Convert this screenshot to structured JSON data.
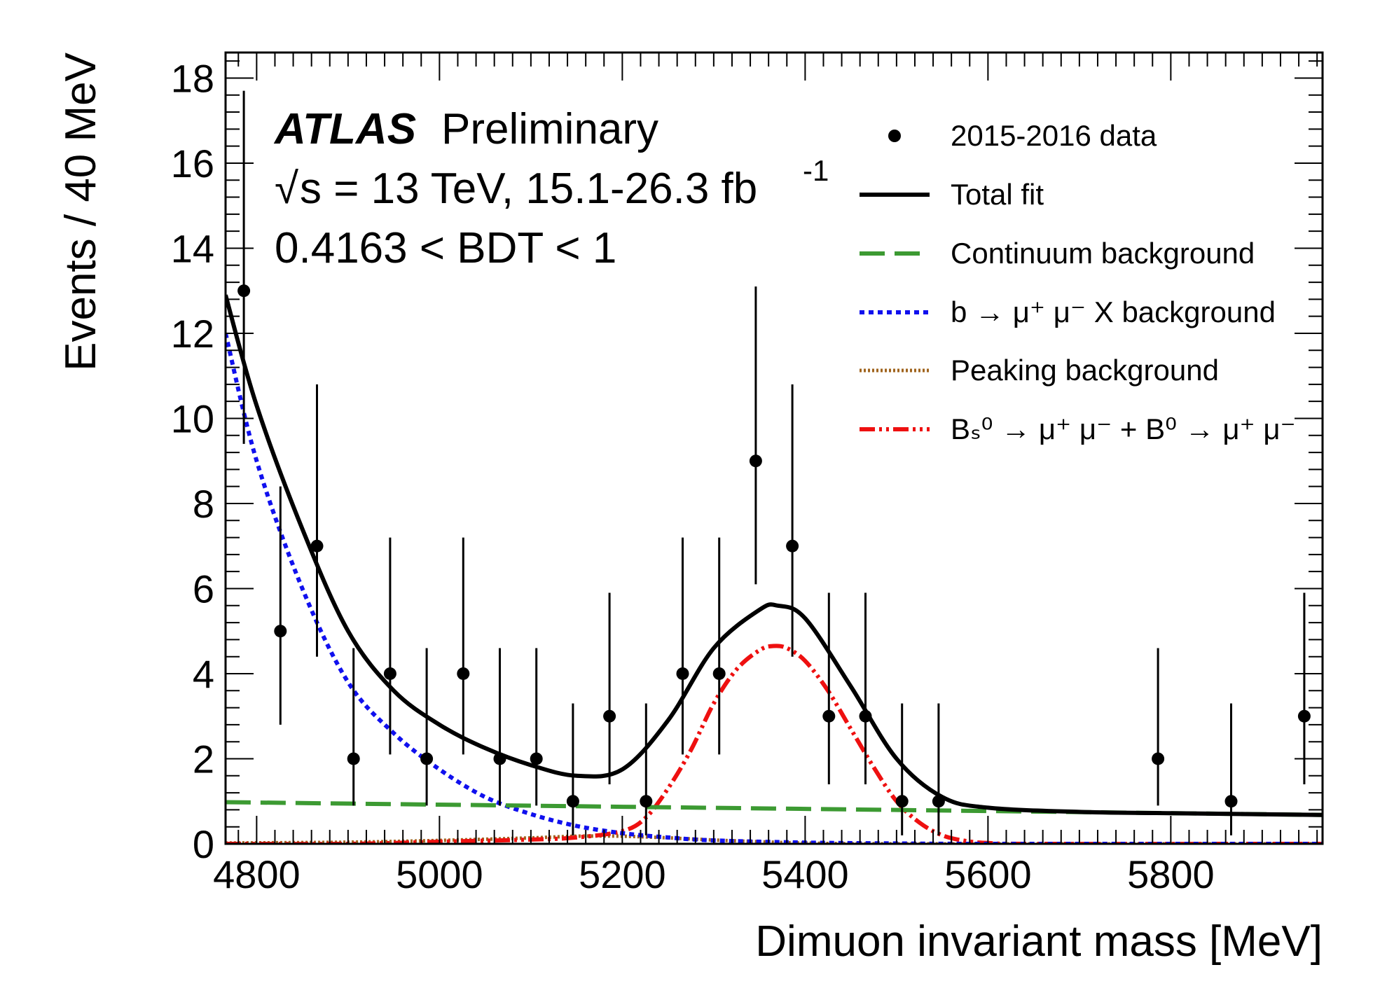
{
  "chart_data": {
    "type": "scatter",
    "xlabel": "Dimuon invariant mass [MeV]",
    "ylabel": "Events / 40 MeV",
    "xlim": [
      4766,
      5966
    ],
    "ylim": [
      0,
      18.6
    ],
    "x_ticks": [
      4800,
      5000,
      5200,
      5400,
      5600,
      5800
    ],
    "x_tick_labels": [
      "4800",
      "5000",
      "5200",
      "5400",
      "5600",
      "5800"
    ],
    "y_ticks": [
      0,
      2,
      4,
      6,
      8,
      10,
      12,
      14,
      16,
      18
    ],
    "y_tick_labels": [
      "0",
      "2",
      "4",
      "6",
      "8",
      "10",
      "12",
      "14",
      "16",
      "18"
    ],
    "grid": false,
    "legend_position": "top-right",
    "annotations": {
      "experiment": "ATLAS",
      "status": "Preliminary",
      "energy_prefix": "s = 13 TeV, 15.1-26.3 fb",
      "energy_sup": "-1",
      "selection": "0.4163 < BDT < 1"
    },
    "legend": {
      "data": "2015-2016 data",
      "total": "Total fit",
      "continuum": "Continuum background",
      "bmumux": "b → μ⁺ μ⁻ X background",
      "peaking": "Peaking background",
      "signal": "Bₛ⁰ → μ⁺ μ⁻ + B⁰ → μ⁺ μ⁻"
    },
    "series": [
      {
        "name": "2015-2016 data",
        "style": "points",
        "color": "#000000",
        "x": [
          4786,
          4826,
          4866,
          4906,
          4946,
          4986,
          5026,
          5066,
          5106,
          5146,
          5186,
          5226,
          5266,
          5306,
          5346,
          5386,
          5426,
          5466,
          5506,
          5546,
          5786,
          5866,
          5946
        ],
        "y": [
          13,
          5,
          7,
          2,
          4,
          2,
          4,
          2,
          2,
          1,
          3,
          1,
          4,
          4,
          9,
          7,
          3,
          3,
          1,
          1,
          2,
          1,
          3
        ],
        "err_low": [
          3.6,
          2.2,
          2.6,
          1.1,
          1.9,
          1.1,
          1.9,
          1.1,
          1.1,
          0.8,
          1.6,
          0.8,
          1.9,
          1.9,
          2.9,
          2.6,
          1.6,
          1.6,
          0.8,
          0.8,
          1.1,
          0.8,
          1.6
        ],
        "err_high": [
          4.7,
          3.4,
          3.8,
          2.6,
          3.2,
          2.6,
          3.2,
          2.6,
          2.6,
          2.3,
          2.9,
          2.3,
          3.2,
          3.2,
          4.1,
          3.8,
          2.9,
          2.9,
          2.3,
          2.3,
          2.6,
          2.3,
          2.9
        ]
      },
      {
        "name": "Total fit",
        "style": "solid",
        "color": "#000000",
        "x": [
          4766,
          4800,
          4850,
          4900,
          4950,
          5000,
          5050,
          5100,
          5150,
          5200,
          5250,
          5300,
          5350,
          5370,
          5400,
          5450,
          5500,
          5550,
          5600,
          5700,
          5800,
          5966
        ],
        "y": [
          12.9,
          10.3,
          7.4,
          5.0,
          3.6,
          2.8,
          2.25,
          1.85,
          1.6,
          1.75,
          2.9,
          4.6,
          5.5,
          5.6,
          5.3,
          3.7,
          2.0,
          1.1,
          0.85,
          0.75,
          0.72,
          0.68
        ]
      },
      {
        "name": "Continuum background",
        "style": "dashed",
        "color": "#3c9a32",
        "x": [
          4766,
          5966
        ],
        "y": [
          0.98,
          0.68
        ]
      },
      {
        "name": "b → μ⁺ μ⁻ X background",
        "style": "dotted",
        "color": "#1010ee",
        "x": [
          4766,
          4800,
          4850,
          4900,
          4950,
          5000,
          5050,
          5100,
          5150,
          5200,
          5250,
          5300,
          5400,
          5500,
          5600,
          5966
        ],
        "y": [
          12.0,
          9.0,
          6.0,
          3.8,
          2.6,
          1.75,
          1.1,
          0.7,
          0.42,
          0.25,
          0.15,
          0.08,
          0.03,
          0.01,
          0.0,
          0.0
        ]
      },
      {
        "name": "Peaking background",
        "style": "densely-dotted",
        "color": "#a0641e",
        "x": [
          4766,
          4900,
          5000,
          5100,
          5150,
          5200,
          5250,
          5300,
          5350,
          5400,
          5500,
          5966
        ],
        "y": [
          0.02,
          0.04,
          0.08,
          0.14,
          0.18,
          0.18,
          0.14,
          0.09,
          0.05,
          0.02,
          0.0,
          0.0
        ]
      },
      {
        "name": "Bₛ⁰ → μ⁺ μ⁻ + B⁰ → μ⁺ μ⁻",
        "style": "dash-dot-dot",
        "color": "#ee1010",
        "x": [
          4766,
          4900,
          5000,
          5100,
          5150,
          5200,
          5225,
          5250,
          5275,
          5300,
          5325,
          5350,
          5365,
          5380,
          5400,
          5425,
          5450,
          5475,
          5500,
          5525,
          5550,
          5575,
          5600,
          5650,
          5966
        ],
        "y": [
          0.0,
          0.0,
          0.05,
          0.1,
          0.15,
          0.3,
          0.6,
          1.3,
          2.2,
          3.3,
          4.1,
          4.55,
          4.65,
          4.6,
          4.3,
          3.6,
          2.7,
          1.8,
          1.0,
          0.5,
          0.2,
          0.07,
          0.02,
          0.0,
          0.0
        ]
      }
    ]
  }
}
